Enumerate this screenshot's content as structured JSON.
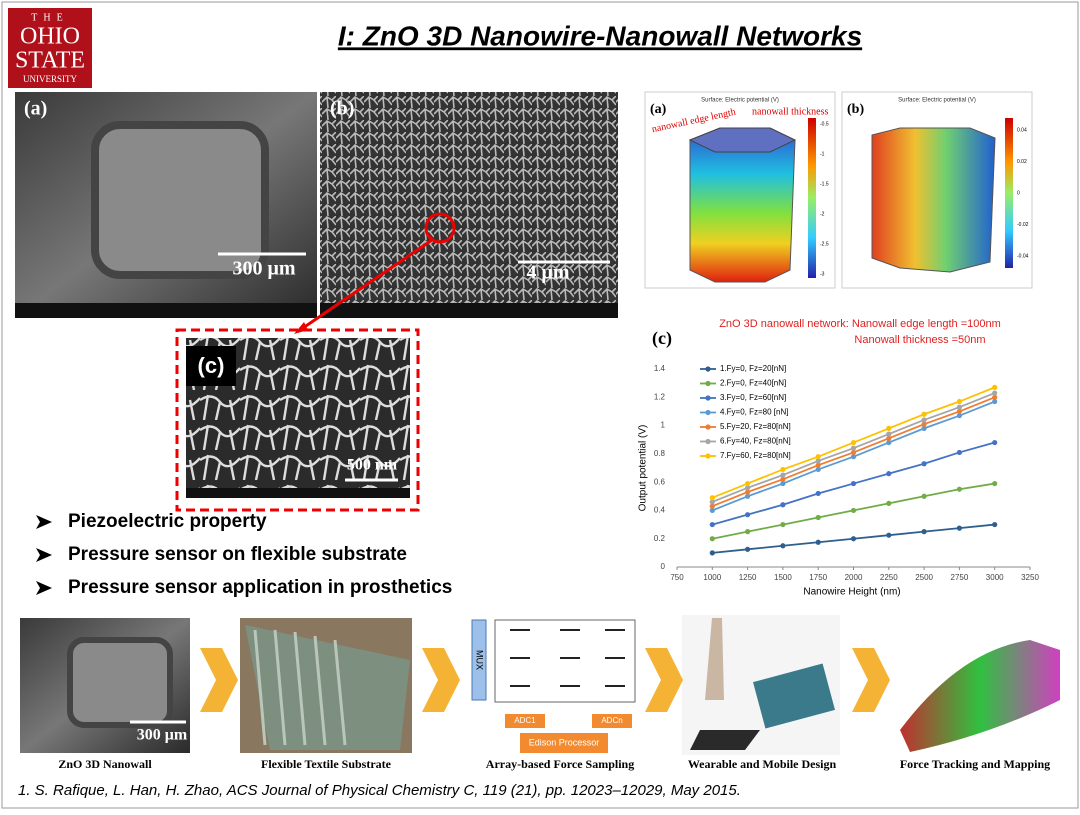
{
  "header": {
    "logo": [
      "THE",
      "OHIO",
      "STATE",
      "UNIVERSITY"
    ],
    "title": "I: ZnO 3D Nanowire-Nanowall Networks"
  },
  "sem": {
    "a": {
      "label": "(a)",
      "scale": "300 μm"
    },
    "b": {
      "label": "(b)",
      "scale": "4 μm"
    },
    "c": {
      "label": "(c)",
      "scale": "500 nm"
    }
  },
  "simulation": {
    "a": {
      "label": "(a)",
      "caption": "Surface: Electric potential (V)",
      "edge": "nanowall edge length",
      "thickness": "nanowall thickness",
      "colorbar": [
        "-0.5",
        "-1",
        "-1.5",
        "-2",
        "-2.5",
        "-3"
      ]
    },
    "b": {
      "label": "(b)",
      "caption": "Surface: Electric potential (V)",
      "colorbar": [
        "0.04",
        "0.02",
        "0",
        "-0.02",
        "-0.04"
      ]
    }
  },
  "chart_data": {
    "type": "line",
    "panel_label": "(c)",
    "title": "ZnO 3D nanowall network: Nanowall edge length =100nm",
    "subtitle": "Nanowall thickness =50nm",
    "x_label": "Nanowire Height (nm)",
    "y_label": "Output potential (V)",
    "x": [
      1000,
      1250,
      1500,
      1750,
      2000,
      2250,
      2500,
      2750,
      3000
    ],
    "series": [
      {
        "name": "1.Fy=0, Fz=20[nN]",
        "color": "#2e5f8e",
        "values": [
          0.1,
          0.125,
          0.15,
          0.175,
          0.2,
          0.225,
          0.25,
          0.275,
          0.3
        ]
      },
      {
        "name": "2.Fy=0, Fz=40[nN]",
        "color": "#70ad47",
        "values": [
          0.2,
          0.25,
          0.3,
          0.35,
          0.4,
          0.45,
          0.5,
          0.55,
          0.59
        ]
      },
      {
        "name": "3.Fy=0, Fz=60[nN]",
        "color": "#4472c4",
        "values": [
          0.3,
          0.37,
          0.44,
          0.52,
          0.59,
          0.66,
          0.73,
          0.81,
          0.88
        ]
      },
      {
        "name": "4.Fy=0, Fz=80 [nN]",
        "color": "#5b9bd5",
        "values": [
          0.4,
          0.5,
          0.59,
          0.69,
          0.78,
          0.88,
          0.98,
          1.07,
          1.17
        ]
      },
      {
        "name": "5.Fy=20, Fz=80[nN]",
        "color": "#ed7d31",
        "values": [
          0.43,
          0.53,
          0.62,
          0.72,
          0.81,
          0.91,
          1.01,
          1.1,
          1.2
        ]
      },
      {
        "name": "6.Fy=40, Fz=80[nN]",
        "color": "#a5a5a5",
        "values": [
          0.46,
          0.56,
          0.65,
          0.75,
          0.84,
          0.94,
          1.04,
          1.13,
          1.23
        ]
      },
      {
        "name": "7.Fy=60, Fz=80[nN]",
        "color": "#ffc000",
        "values": [
          0.49,
          0.59,
          0.69,
          0.78,
          0.88,
          0.98,
          1.08,
          1.17,
          1.27
        ]
      }
    ],
    "xlim": [
      750,
      3250
    ],
    "xticks": [
      750,
      1000,
      1250,
      1500,
      1750,
      2000,
      2250,
      2500,
      2750,
      3000,
      3250
    ],
    "ylim": [
      0,
      1.4
    ],
    "yticks": [
      0,
      0.2,
      0.4,
      0.6,
      0.8,
      1,
      1.2,
      1.4
    ],
    "legend": "upper-left"
  },
  "bullets": [
    "Piezoelectric property",
    "Pressure sensor on flexible substrate",
    "Pressure sensor application in prosthetics"
  ],
  "pipeline": {
    "steps": [
      "ZnO 3D Nanowall",
      "Flexible Textile Substrate",
      "Array-based Force Sampling",
      "Wearable and Mobile Design",
      "Force Tracking and Mapping"
    ],
    "scale": "300 μm",
    "mux": "MUX",
    "adc1": "ADC1",
    "adcn": "ADCn",
    "processor": "Edison Processor"
  },
  "citation": "1. S. Rafique, L. Han, H. Zhao, ACS Journal of Physical Chemistry C, 119 (21), pp. 12023–12029, May 2015."
}
